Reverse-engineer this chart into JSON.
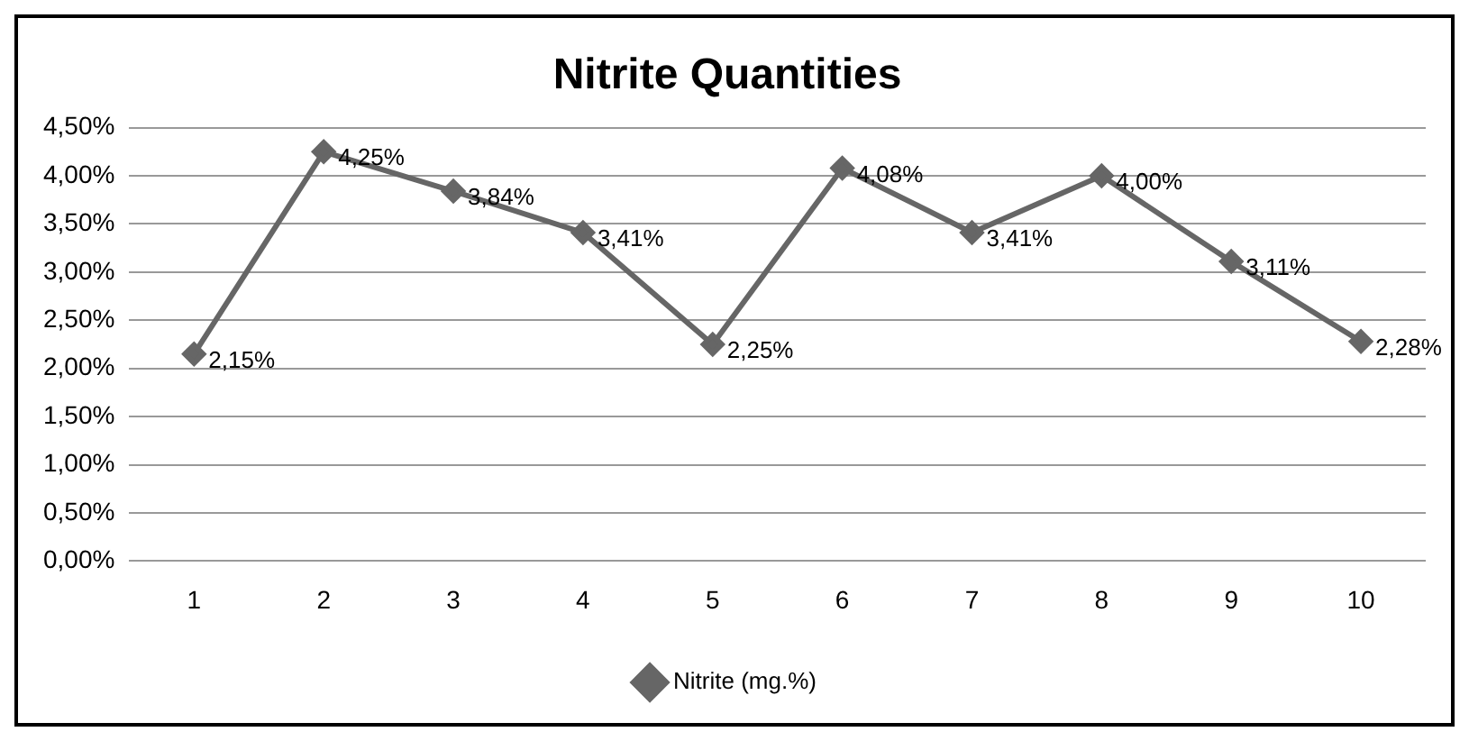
{
  "chart_data": {
    "type": "line",
    "title": "Nitrite Quantities",
    "categories": [
      "1",
      "2",
      "3",
      "4",
      "5",
      "6",
      "7",
      "8",
      "9",
      "10"
    ],
    "series": [
      {
        "name": "Nitrite (mg.%)",
        "color": "#666666",
        "values": [
          2.15,
          4.25,
          3.84,
          3.41,
          2.25,
          4.08,
          3.41,
          4.0,
          3.11,
          2.28
        ],
        "value_labels": [
          "2,15%",
          "4,25%",
          "3,84%",
          "3,41%",
          "2,25%",
          "4,08%",
          "3,41%",
          "4,00%",
          "3,11%",
          "2,28%"
        ]
      }
    ],
    "ylim": [
      0,
      4.5
    ],
    "yticks": [
      {
        "value": 0,
        "label": "0,00%"
      },
      {
        "value": 0.5,
        "label": "0,50%"
      },
      {
        "value": 1,
        "label": "1,00%"
      },
      {
        "value": 1.5,
        "label": "1,50%"
      },
      {
        "value": 2,
        "label": "2,00%"
      },
      {
        "value": 2.5,
        "label": "2,50%"
      },
      {
        "value": 3,
        "label": "3,00%"
      },
      {
        "value": 3.5,
        "label": "3,50%"
      },
      {
        "value": 4,
        "label": "4,00%"
      },
      {
        "value": 4.5,
        "label": "4,50%"
      }
    ],
    "grid": "y",
    "legend": "bottom",
    "marker": "diamond",
    "line_style": "solid"
  }
}
